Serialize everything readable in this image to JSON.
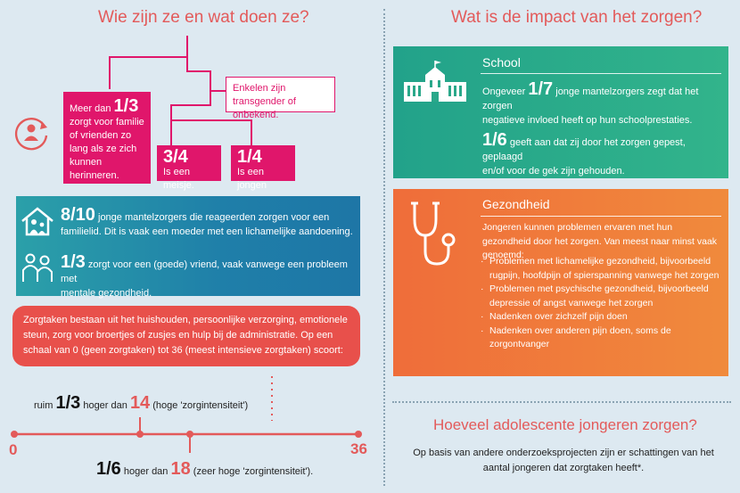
{
  "left": {
    "title": "Wie zijn ze en wat doen ze?",
    "tree": {
      "box_main_big": "1/3",
      "box_main_prefix": "Meer dan",
      "box_main_text": "zorgt voor familie of vrienden zo lang als ze zich kunnen herinneren.",
      "box_transgender": "Enkelen zijn transgender of onbekend.",
      "box_girl_big": "3/4",
      "box_girl_text": "Is een meisje.",
      "box_boy_big": "1/4",
      "box_boy_text": "Is een jongen"
    },
    "teal": {
      "row1_big": "8/10",
      "row1_text_a": "jonge mantelzorgers die reageerden zorgen voor een",
      "row1_text_b": "familielid. Dit is vaak een moeder met een lichamelijke aandoening.",
      "row2_big": "1/3",
      "row2_text_a": "zorgt voor een (goede) vriend, vaak vanwege een probleem met",
      "row2_text_b": "mentale gezondheid."
    },
    "red_text": "Zorgtaken bestaan uit het huishouden, persoonlijke verzorging, emotionele steun, zorg voor broertjes of zusjes en hulp bij de administratie. Op een schaal van 0 (geen zorgtaken) tot 36 (meest intensieve zorgtaken) scoort:",
    "scale": {
      "min": "0",
      "max": "36",
      "top_prefix": "ruim",
      "top_big": "1/3",
      "top_mid": "hoger dan",
      "top_val": "14",
      "top_suffix": "(hoge 'zorgintensiteit')",
      "bot_big": "1/6",
      "bot_mid": "hoger dan",
      "bot_val": "18",
      "bot_suffix": "(zeer hoge 'zorgintensiteit')."
    }
  },
  "right": {
    "title": "Wat is de impact van het zorgen?",
    "school": {
      "head": "School",
      "p1_prefix": "Ongeveer",
      "p1_big": "1/7",
      "p1_text_a": "jonge mantelzorgers zegt dat het zorgen",
      "p1_text_b": "negatieve invloed heeft op hun schoolprestaties.",
      "p2_big": "1/6",
      "p2_text_a": "geeft aan dat zij door het zorgen gepest, geplaagd",
      "p2_text_b": "en/of voor de gek zijn gehouden."
    },
    "health": {
      "head": "Gezondheid",
      "intro": "Jongeren kunnen problemen ervaren met hun gezondheid door het zorgen. Van meest naar minst vaak genoemd:",
      "items": [
        "Problemen met lichamelijke gezondheid, bijvoorbeeld rugpijn, hoofdpijn of spierspanning vanwege het zorgen",
        "Problemen met psychische gezondheid, bijvoorbeeld depressie of angst vanwege het zorgen",
        "Nadenken over zichzelf pijn doen",
        "Nadenken over anderen pijn doen, soms de zorgontvanger"
      ]
    },
    "bottom_title": "Hoeveel adolescente jongeren zorgen?",
    "bottom_text": "Op basis van andere onderzoeksprojecten zijn er schattingen van het aantal jongeren dat zorgtaken heeft*."
  }
}
